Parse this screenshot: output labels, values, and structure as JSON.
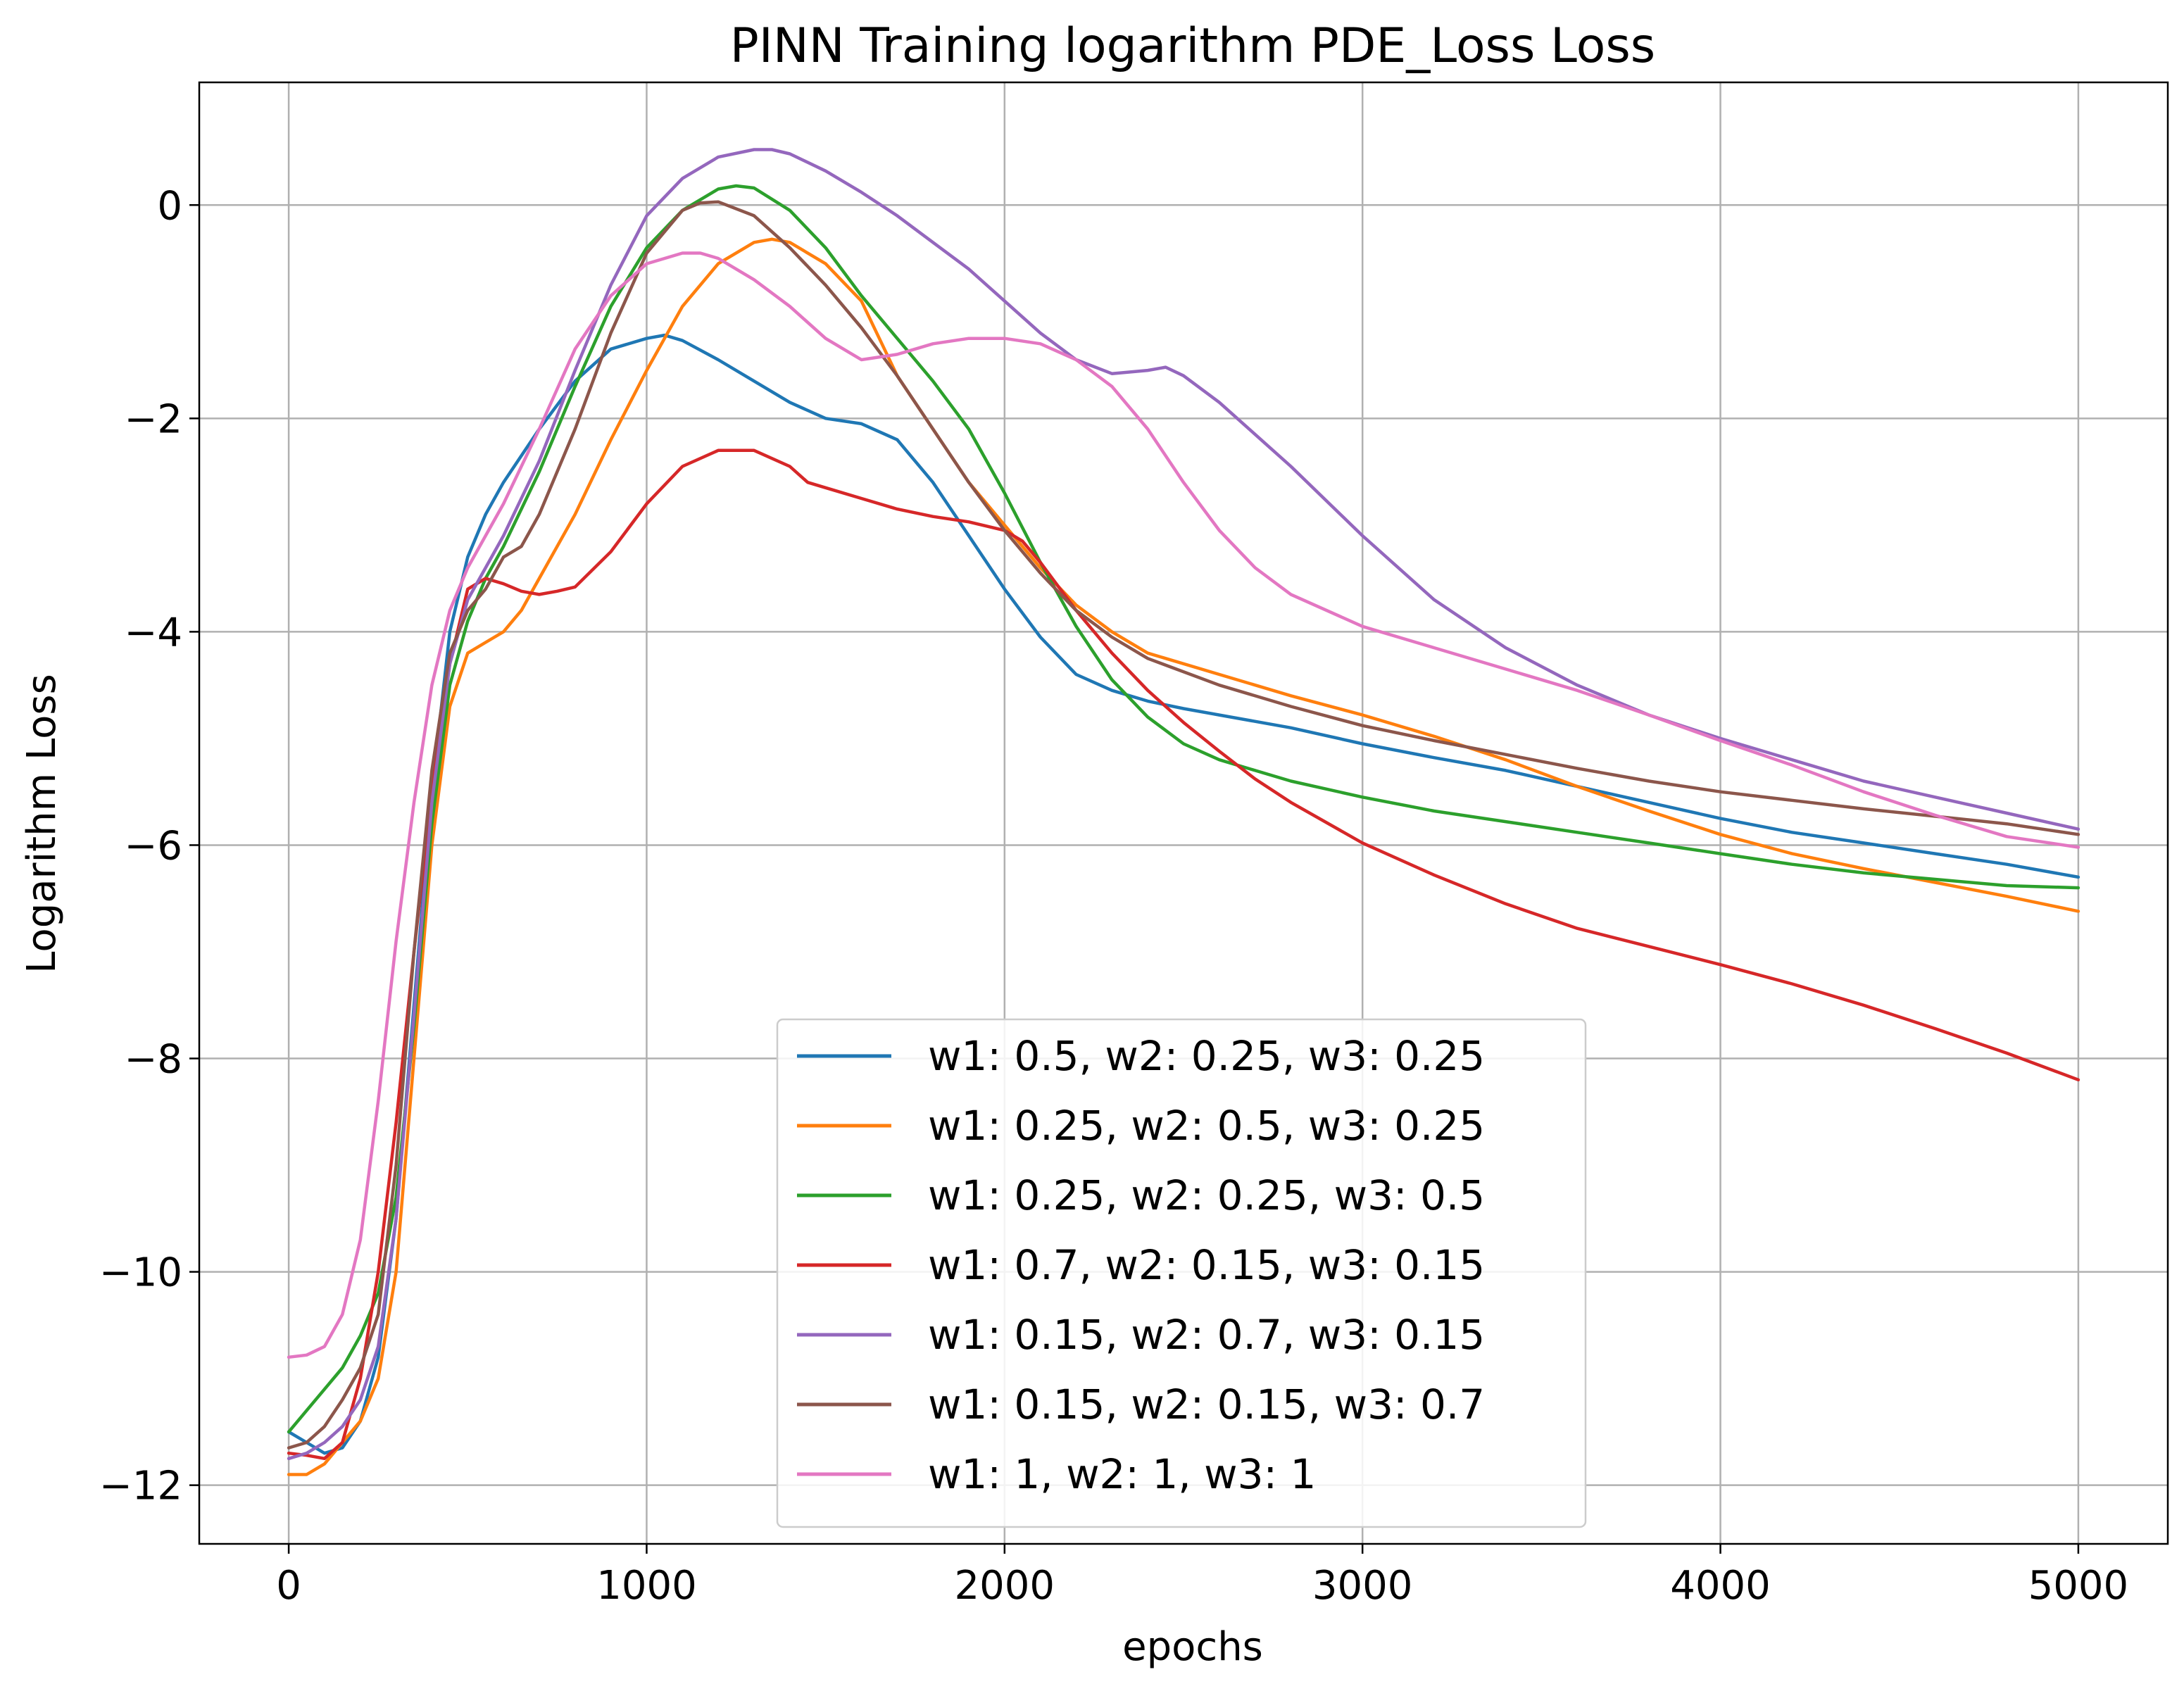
{
  "chart_data": {
    "type": "line",
    "title": "PINN Training logarithm PDE_Loss Loss",
    "xlabel": "epochs",
    "ylabel": "Logarithm Loss",
    "xlim": [
      -250,
      5250
    ],
    "ylim": [
      -12.55,
      1.15
    ],
    "xticks": [
      0,
      1000,
      2000,
      3000,
      4000,
      5000
    ],
    "xtick_labels": [
      "0",
      "1000",
      "2000",
      "3000",
      "4000",
      "5000"
    ],
    "yticks": [
      0,
      -2,
      -4,
      -6,
      -8,
      -10,
      -12
    ],
    "ytick_labels": [
      "0",
      "−2",
      "−4",
      "−6",
      "−8",
      "−10",
      "−12"
    ],
    "grid": true,
    "legend_position": "lower-center",
    "series": [
      {
        "name": "w1: 0.5, w2: 0.25, w3: 0.25",
        "color": "#1f77b4",
        "x": [
          0,
          50,
          100,
          150,
          200,
          250,
          300,
          350,
          400,
          450,
          500,
          550,
          600,
          700,
          800,
          900,
          1000,
          1050,
          1100,
          1200,
          1300,
          1400,
          1500,
          1600,
          1700,
          1800,
          1900,
          2000,
          2100,
          2200,
          2300,
          2400,
          2500,
          2600,
          2800,
          3000,
          3200,
          3400,
          3600,
          3800,
          4000,
          4200,
          4400,
          4600,
          4800,
          5000
        ],
        "y": [
          -11.5,
          -11.6,
          -11.7,
          -11.65,
          -11.4,
          -10.8,
          -9.5,
          -7.5,
          -5.5,
          -4.0,
          -3.3,
          -2.9,
          -2.6,
          -2.1,
          -1.65,
          -1.35,
          -1.25,
          -1.22,
          -1.27,
          -1.45,
          -1.65,
          -1.85,
          -2.0,
          -2.05,
          -2.2,
          -2.6,
          -3.1,
          -3.6,
          -4.05,
          -4.4,
          -4.55,
          -4.65,
          -4.72,
          -4.78,
          -4.9,
          -5.05,
          -5.18,
          -5.3,
          -5.45,
          -5.6,
          -5.75,
          -5.88,
          -5.98,
          -6.08,
          -6.18,
          -6.3
        ]
      },
      {
        "name": "w1: 0.25, w2: 0.5, w3: 0.25",
        "color": "#ff7f0e",
        "x": [
          0,
          50,
          100,
          150,
          200,
          250,
          300,
          350,
          400,
          450,
          500,
          550,
          600,
          650,
          700,
          800,
          900,
          1000,
          1100,
          1200,
          1300,
          1350,
          1400,
          1500,
          1600,
          1700,
          1800,
          1900,
          2000,
          2100,
          2200,
          2300,
          2400,
          2600,
          2800,
          3000,
          3200,
          3400,
          3600,
          3800,
          4000,
          4200,
          4400,
          4600,
          4800,
          5000
        ],
        "y": [
          -11.9,
          -11.9,
          -11.8,
          -11.6,
          -11.4,
          -11.0,
          -10.0,
          -8.0,
          -6.0,
          -4.7,
          -4.2,
          -4.1,
          -4.0,
          -3.8,
          -3.5,
          -2.9,
          -2.2,
          -1.55,
          -0.95,
          -0.55,
          -0.35,
          -0.32,
          -0.35,
          -0.55,
          -0.9,
          -1.6,
          -2.1,
          -2.6,
          -3.0,
          -3.4,
          -3.75,
          -4.0,
          -4.2,
          -4.4,
          -4.6,
          -4.78,
          -4.98,
          -5.2,
          -5.45,
          -5.68,
          -5.9,
          -6.08,
          -6.22,
          -6.35,
          -6.48,
          -6.62
        ]
      },
      {
        "name": "w1: 0.25, w2: 0.25, w3: 0.5",
        "color": "#2ca02c",
        "x": [
          0,
          50,
          100,
          150,
          200,
          250,
          300,
          350,
          400,
          450,
          500,
          550,
          600,
          700,
          800,
          900,
          1000,
          1100,
          1200,
          1250,
          1300,
          1400,
          1500,
          1600,
          1700,
          1800,
          1900,
          2000,
          2100,
          2200,
          2300,
          2400,
          2500,
          2600,
          2700,
          2800,
          3000,
          3200,
          3400,
          3600,
          3800,
          4000,
          4200,
          4400,
          4600,
          4800,
          5000
        ],
        "y": [
          -11.5,
          -11.3,
          -11.1,
          -10.9,
          -10.6,
          -10.2,
          -9.3,
          -7.7,
          -5.8,
          -4.5,
          -3.9,
          -3.5,
          -3.2,
          -2.5,
          -1.7,
          -0.95,
          -0.4,
          -0.05,
          0.15,
          0.18,
          0.16,
          -0.05,
          -0.4,
          -0.85,
          -1.25,
          -1.65,
          -2.1,
          -2.7,
          -3.35,
          -3.95,
          -4.45,
          -4.8,
          -5.05,
          -5.2,
          -5.3,
          -5.4,
          -5.55,
          -5.68,
          -5.78,
          -5.88,
          -5.98,
          -6.08,
          -6.18,
          -6.26,
          -6.32,
          -6.38,
          -6.4
        ]
      },
      {
        "name": "w1: 0.7, w2: 0.15, w3: 0.15",
        "color": "#d62728",
        "x": [
          0,
          50,
          100,
          150,
          200,
          250,
          300,
          350,
          400,
          450,
          500,
          550,
          600,
          650,
          700,
          750,
          800,
          900,
          1000,
          1100,
          1200,
          1300,
          1400,
          1450,
          1500,
          1600,
          1700,
          1800,
          1900,
          2000,
          2050,
          2100,
          2200,
          2300,
          2400,
          2500,
          2600,
          2700,
          2800,
          3000,
          3200,
          3400,
          3600,
          3800,
          4000,
          4200,
          4400,
          4600,
          4800,
          5000
        ],
        "y": [
          -11.7,
          -11.72,
          -11.75,
          -11.6,
          -11.0,
          -10.0,
          -8.6,
          -7.0,
          -5.5,
          -4.3,
          -3.6,
          -3.5,
          -3.55,
          -3.62,
          -3.65,
          -3.62,
          -3.58,
          -3.25,
          -2.8,
          -2.45,
          -2.3,
          -2.3,
          -2.45,
          -2.6,
          -2.65,
          -2.75,
          -2.85,
          -2.92,
          -2.97,
          -3.05,
          -3.15,
          -3.35,
          -3.8,
          -4.2,
          -4.55,
          -4.85,
          -5.12,
          -5.38,
          -5.6,
          -5.98,
          -6.28,
          -6.55,
          -6.78,
          -6.95,
          -7.12,
          -7.3,
          -7.5,
          -7.72,
          -7.95,
          -8.2
        ]
      },
      {
        "name": "w1: 0.15, w2: 0.7, w3: 0.15",
        "color": "#9467bd",
        "x": [
          0,
          50,
          100,
          150,
          200,
          250,
          300,
          350,
          400,
          450,
          500,
          550,
          600,
          700,
          800,
          900,
          1000,
          1100,
          1200,
          1300,
          1350,
          1400,
          1500,
          1600,
          1700,
          1800,
          1900,
          2000,
          2100,
          2200,
          2300,
          2400,
          2450,
          2500,
          2600,
          2700,
          2800,
          3000,
          3200,
          3400,
          3600,
          3800,
          4000,
          4200,
          4400,
          4600,
          4800,
          5000
        ],
        "y": [
          -11.75,
          -11.7,
          -11.6,
          -11.45,
          -11.2,
          -10.7,
          -9.5,
          -7.6,
          -5.6,
          -4.3,
          -3.7,
          -3.4,
          -3.1,
          -2.4,
          -1.55,
          -0.75,
          -0.1,
          0.25,
          0.45,
          0.52,
          0.52,
          0.48,
          0.32,
          0.12,
          -0.1,
          -0.35,
          -0.6,
          -0.9,
          -1.2,
          -1.45,
          -1.58,
          -1.55,
          -1.52,
          -1.6,
          -1.85,
          -2.15,
          -2.45,
          -3.1,
          -3.7,
          -4.15,
          -4.5,
          -4.78,
          -5.0,
          -5.2,
          -5.4,
          -5.55,
          -5.7,
          -5.85
        ]
      },
      {
        "name": "w1: 0.15, w2: 0.15, w3: 0.7",
        "color": "#8c564b",
        "x": [
          0,
          50,
          100,
          150,
          200,
          250,
          300,
          350,
          400,
          450,
          500,
          550,
          600,
          650,
          700,
          800,
          900,
          1000,
          1100,
          1150,
          1200,
          1300,
          1400,
          1500,
          1600,
          1700,
          1800,
          1900,
          2000,
          2100,
          2200,
          2300,
          2400,
          2600,
          2800,
          3000,
          3200,
          3400,
          3600,
          3800,
          4000,
          4200,
          4400,
          4600,
          4800,
          5000
        ],
        "y": [
          -11.65,
          -11.6,
          -11.45,
          -11.2,
          -10.9,
          -10.4,
          -9.0,
          -7.0,
          -5.3,
          -4.2,
          -3.8,
          -3.6,
          -3.3,
          -3.2,
          -2.9,
          -2.1,
          -1.2,
          -0.45,
          -0.05,
          0.02,
          0.03,
          -0.1,
          -0.4,
          -0.75,
          -1.15,
          -1.6,
          -2.1,
          -2.6,
          -3.05,
          -3.45,
          -3.8,
          -4.05,
          -4.25,
          -4.5,
          -4.7,
          -4.88,
          -5.02,
          -5.15,
          -5.28,
          -5.4,
          -5.5,
          -5.58,
          -5.66,
          -5.73,
          -5.8,
          -5.9
        ]
      },
      {
        "name": "w1: 1, w2: 1, w3: 1",
        "color": "#e377c2",
        "x": [
          0,
          50,
          100,
          150,
          200,
          250,
          300,
          350,
          400,
          450,
          500,
          550,
          600,
          700,
          800,
          900,
          1000,
          1100,
          1150,
          1200,
          1300,
          1400,
          1500,
          1600,
          1700,
          1800,
          1900,
          2000,
          2100,
          2200,
          2300,
          2400,
          2500,
          2600,
          2700,
          2800,
          3000,
          3200,
          3400,
          3600,
          3800,
          4000,
          4200,
          4400,
          4600,
          4800,
          5000
        ],
        "y": [
          -10.8,
          -10.78,
          -10.7,
          -10.4,
          -9.7,
          -8.4,
          -6.9,
          -5.6,
          -4.5,
          -3.8,
          -3.4,
          -3.1,
          -2.8,
          -2.1,
          -1.35,
          -0.85,
          -0.55,
          -0.45,
          -0.45,
          -0.5,
          -0.7,
          -0.95,
          -1.25,
          -1.45,
          -1.4,
          -1.3,
          -1.25,
          -1.25,
          -1.3,
          -1.45,
          -1.7,
          -2.1,
          -2.6,
          -3.05,
          -3.4,
          -3.65,
          -3.95,
          -4.15,
          -4.35,
          -4.55,
          -4.78,
          -5.02,
          -5.25,
          -5.5,
          -5.72,
          -5.92,
          -6.02
        ]
      }
    ]
  }
}
